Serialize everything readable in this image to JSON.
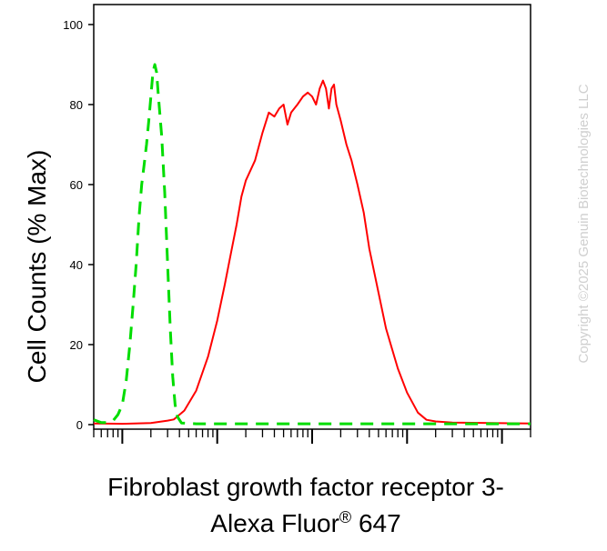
{
  "chart_data": {
    "type": "line",
    "xlabel_line1": "Fibroblast growth factor receptor 3-",
    "xlabel_line2_text": "Alexa Fluor",
    "xlabel_line2_mark": "®",
    "xlabel_line2_end": " 647",
    "ylabel": "Cell Counts (% Max)",
    "xscale": "log",
    "xlim": [
      0.5,
      20000
    ],
    "ylim": [
      0,
      100
    ],
    "yticks": [
      "0",
      "20",
      "40",
      "60",
      "80",
      "100"
    ],
    "grid": false,
    "series": [
      {
        "color": "#ff0000",
        "style": "solid",
        "points": [
          [
            0.5,
            0.3
          ],
          [
            1.0,
            0.2
          ],
          [
            2.0,
            0.4
          ],
          [
            3.0,
            1.0
          ],
          [
            3.5,
            1.3
          ],
          [
            4.5,
            3.5
          ],
          [
            6.0,
            8.5
          ],
          [
            8.0,
            17
          ],
          [
            10,
            26
          ],
          [
            12,
            35
          ],
          [
            14,
            43
          ],
          [
            16,
            50
          ],
          [
            18,
            57
          ],
          [
            20,
            61
          ],
          [
            25,
            66
          ],
          [
            30,
            73
          ],
          [
            35,
            78
          ],
          [
            40,
            77
          ],
          [
            45,
            79
          ],
          [
            50,
            80
          ],
          [
            55,
            75
          ],
          [
            60,
            78
          ],
          [
            70,
            80
          ],
          [
            80,
            82
          ],
          [
            90,
            83
          ],
          [
            100,
            82
          ],
          [
            110,
            80
          ],
          [
            120,
            84
          ],
          [
            130,
            86
          ],
          [
            140,
            84
          ],
          [
            150,
            79
          ],
          [
            160,
            84
          ],
          [
            170,
            85
          ],
          [
            180,
            80
          ],
          [
            200,
            76
          ],
          [
            230,
            70
          ],
          [
            260,
            66
          ],
          [
            300,
            60
          ],
          [
            350,
            53
          ],
          [
            400,
            44
          ],
          [
            500,
            33
          ],
          [
            600,
            24
          ],
          [
            800,
            14
          ],
          [
            1000,
            8
          ],
          [
            1300,
            3
          ],
          [
            1600,
            1.2
          ],
          [
            2000,
            0.8
          ],
          [
            3000,
            0.5
          ],
          [
            20000,
            0.3
          ]
        ]
      },
      {
        "color": "#00dd00",
        "style": "dashed",
        "points": [
          [
            0.5,
            1.2
          ],
          [
            0.6,
            0.5
          ],
          [
            0.7,
            0.5
          ],
          [
            0.8,
            1.0
          ],
          [
            0.9,
            2.5
          ],
          [
            1.0,
            5
          ],
          [
            1.1,
            11
          ],
          [
            1.2,
            20
          ],
          [
            1.3,
            30
          ],
          [
            1.4,
            40
          ],
          [
            1.5,
            52
          ],
          [
            1.6,
            60
          ],
          [
            1.7,
            65
          ],
          [
            1.8,
            70
          ],
          [
            1.9,
            76
          ],
          [
            2.0,
            82
          ],
          [
            2.1,
            88
          ],
          [
            2.2,
            90
          ],
          [
            2.3,
            88
          ],
          [
            2.4,
            82
          ],
          [
            2.6,
            72
          ],
          [
            2.8,
            58
          ],
          [
            3.0,
            40
          ],
          [
            3.2,
            24
          ],
          [
            3.4,
            12
          ],
          [
            3.6,
            5
          ],
          [
            3.8,
            2
          ],
          [
            4.2,
            0.4
          ],
          [
            6,
            0.2
          ],
          [
            20000,
            0.2
          ]
        ]
      }
    ]
  },
  "watermark": "Copyright ©2025 Genuin Biotechnologies LLC"
}
